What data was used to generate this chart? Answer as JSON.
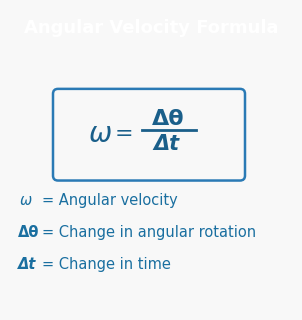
{
  "title": "Angular Velocity Formula",
  "title_bg_color": "#1e7db5",
  "title_text_color": "#ffffff",
  "body_bg_color": "#f8f8f8",
  "formula_border_color": "#2a7ab5",
  "formula_text_color": "#1a5f8a",
  "legend_text_color": "#1a6fa0",
  "omega_sym": "ω",
  "delta_theta_sym": "Δθ",
  "delta_t_sym": "Δt",
  "line1_sym": "ω",
  "line1_desc": " = Angular velocity",
  "line2_sym": "Δθ",
  "line2_desc": " = Change in angular rotation",
  "line3_sym": "Δt",
  "line3_desc": "  = Change in time",
  "figsize": [
    3.02,
    3.2
  ],
  "dpi": 100
}
